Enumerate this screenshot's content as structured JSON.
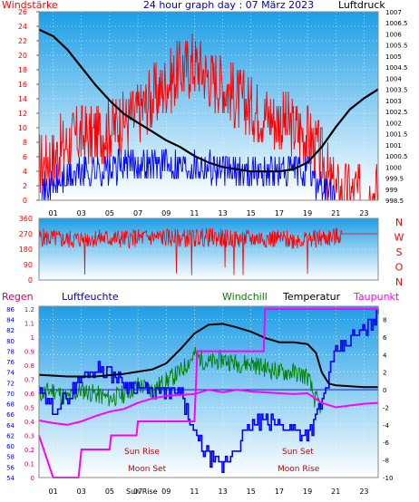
{
  "colors": {
    "wind": "#ff0000",
    "wind_avg": "#0000ff",
    "pressure": "#000000",
    "direction": "#ff0000",
    "dew": "#ff00ff",
    "humidity": "#0000ff",
    "windchill": "#008000",
    "temperature": "#000000",
    "rain": "#cc0066",
    "bg_top": "#1e9ee6",
    "bg_bottom": "#ffffff"
  },
  "chart_data": [
    {
      "type": "line",
      "title": "24 hour graph day : 07 März 2023",
      "left_label": "Windstärke",
      "right_label": "Luftdruck",
      "x_tick_labels": [
        "01",
        "03",
        "05",
        "07",
        "09",
        "11",
        "13",
        "15",
        "17",
        "19",
        "21",
        "23"
      ],
      "y_left_ticks": [
        "0",
        "2",
        "4",
        "6",
        "8",
        "10",
        "12",
        "14",
        "16",
        "18",
        "20",
        "22",
        "24",
        "26"
      ],
      "y_right_ticks": [
        "998.5",
        "999",
        "999.5",
        "1000",
        "1000.5",
        "1001",
        "1001.5",
        "1002",
        "1002.5",
        "1003",
        "1003.5",
        "1004",
        "1004.5",
        "1005",
        "1005.5",
        "1006",
        "1006.5",
        "1007"
      ],
      "ylim_left": [
        0,
        26
      ],
      "ylim_right": [
        998.5,
        1007
      ],
      "xlim": [
        0,
        24
      ],
      "series": [
        {
          "name": "Windstärke",
          "axis": "left",
          "x": [
            0,
            1,
            2,
            3,
            4,
            5,
            6,
            7,
            8,
            9,
            10,
            11,
            12,
            13,
            14,
            15,
            16,
            17,
            18,
            19,
            20,
            20.5,
            21,
            22,
            23,
            24
          ],
          "values": [
            5,
            6,
            8,
            9,
            9,
            10,
            11,
            12,
            14,
            16,
            18,
            19,
            17,
            16,
            14,
            13,
            12,
            11,
            10,
            9,
            6,
            3,
            1,
            1,
            1,
            1
          ]
        },
        {
          "name": "Windstärke avg",
          "axis": "left",
          "x": [
            0,
            1,
            2,
            3,
            4,
            5,
            6,
            7,
            8,
            9,
            10,
            11,
            12,
            13,
            14,
            15,
            16,
            17,
            18,
            19,
            20,
            21,
            22,
            23,
            24
          ],
          "values": [
            1,
            2,
            3,
            4,
            4,
            4,
            5,
            5,
            5,
            5,
            5,
            5,
            5,
            4,
            4,
            4,
            4,
            4,
            4,
            4,
            2,
            0,
            0,
            0,
            0
          ]
        },
        {
          "name": "Luftdruck",
          "axis": "right",
          "x": [
            0,
            1,
            2,
            3,
            4,
            5,
            6,
            7,
            8,
            9,
            10,
            11,
            12,
            13,
            14,
            15,
            16,
            17,
            18,
            19,
            20,
            21,
            22,
            23,
            24
          ],
          "values": [
            1006.2,
            1005.9,
            1005.3,
            1004.5,
            1003.7,
            1003.0,
            1002.4,
            1002.0,
            1001.6,
            1001.2,
            1000.9,
            1000.5,
            1000.2,
            1000.0,
            999.9,
            999.8,
            999.8,
            999.8,
            999.9,
            1000.2,
            1000.9,
            1001.8,
            1002.6,
            1003.1,
            1003.5
          ]
        }
      ]
    },
    {
      "type": "line",
      "right_label": [
        "N",
        "W",
        "S",
        "O",
        "N"
      ],
      "y_left_ticks": [
        "0",
        "90",
        "180",
        "270",
        "360"
      ],
      "ylim": [
        0,
        360
      ],
      "xlim": [
        0,
        24
      ],
      "series": [
        {
          "name": "Windrichtung",
          "x": [
            0,
            2,
            4,
            6,
            8,
            10,
            12,
            14,
            16,
            18,
            20,
            21,
            21.5,
            24
          ],
          "values": [
            250,
            235,
            245,
            240,
            250,
            245,
            250,
            240,
            245,
            235,
            245,
            250,
            270,
            270
          ]
        }
      ]
    },
    {
      "type": "line",
      "labels": {
        "rain": "Regen",
        "humidity": "Luftfeuchte",
        "windchill": "Windchill",
        "temperature": "Temperatur",
        "dew": "Taupunkt"
      },
      "x_tick_labels": [
        "01",
        "03",
        "05",
        "07",
        "09",
        "11",
        "13",
        "15",
        "17",
        "19",
        "21",
        "23"
      ],
      "humidity_ticks": [
        "54",
        "56",
        "58",
        "60",
        "62",
        "64",
        "66",
        "68",
        "70",
        "72",
        "74",
        "76",
        "78",
        "80",
        "82",
        "84",
        "86"
      ],
      "rain_ticks": [
        "0",
        "0.1",
        "0.2",
        "0.3",
        "0.4",
        "0.5",
        "0.6",
        "0.7",
        "0.8",
        "0.9",
        "1",
        "1.1",
        "1.2"
      ],
      "temp_ticks": [
        "-10",
        "-8",
        "-6",
        "-4",
        "-2",
        "0",
        "2",
        "4",
        "6",
        "8"
      ],
      "annotations": [
        "Sun Rise",
        "Moon Set",
        "Sun Set",
        "Moon Rise",
        "Sun Rise"
      ],
      "xlim": [
        0,
        24
      ],
      "series": [
        {
          "name": "Temperatur",
          "axis": "temp",
          "x": [
            0,
            2,
            4,
            6,
            8,
            9,
            10,
            11,
            12,
            13,
            14,
            15,
            16,
            17,
            18,
            19,
            19.6,
            20,
            20.5,
            21,
            22,
            23,
            24
          ],
          "values": [
            1.7,
            1.5,
            1.5,
            1.8,
            2.3,
            3.0,
            4.6,
            6.4,
            7.4,
            7.5,
            7.1,
            6.6,
            5.9,
            5.4,
            5.4,
            5.2,
            4.2,
            2.0,
            0.7,
            0.5,
            0.4,
            0.3,
            0.3
          ]
        },
        {
          "name": "Windchill",
          "axis": "temp",
          "x": [
            0,
            1,
            2,
            3,
            4,
            5,
            6,
            7,
            8,
            9,
            10,
            11,
            12,
            13,
            14,
            15,
            16,
            17,
            18,
            19,
            19.5,
            20,
            21,
            22,
            23,
            24
          ],
          "values": [
            -0.5,
            0,
            -1,
            0,
            -0.5,
            -1,
            -0.5,
            0.5,
            0,
            1,
            2,
            4,
            3,
            3.5,
            3,
            3,
            2.5,
            2,
            2,
            1.5,
            -1,
            -2,
            null,
            null,
            null,
            null
          ]
        },
        {
          "name": "Taupunkt",
          "axis": "temp",
          "x": [
            0,
            1,
            2,
            3,
            4,
            5,
            6,
            7,
            8,
            9,
            10,
            11,
            12,
            13,
            14,
            15,
            16,
            17,
            18,
            19,
            20,
            21,
            22,
            23,
            24
          ],
          "values": [
            -3.5,
            -3.8,
            -4,
            -3.6,
            -3,
            -2.5,
            -2.2,
            -1.5,
            -1,
            -0.7,
            -0.6,
            -0.5,
            0,
            -0.3,
            0,
            -0.2,
            -0.3,
            -0.4,
            -0.5,
            -0.4,
            -1.5,
            -2,
            -1.8,
            -1.6,
            -1.5
          ]
        },
        {
          "name": "Luftfeuchte",
          "axis": "humidity",
          "x": [
            0,
            1,
            2,
            3,
            4,
            5,
            6,
            7,
            8,
            9,
            10,
            11,
            12,
            13,
            14,
            15,
            16,
            17,
            18,
            19,
            20,
            21,
            22,
            23,
            24
          ],
          "values": [
            70,
            67,
            69,
            73,
            75,
            74,
            72,
            71,
            70,
            70,
            70,
            62,
            58,
            56,
            60,
            64,
            65,
            64,
            63,
            62,
            68,
            78,
            80,
            82,
            85
          ]
        },
        {
          "name": "Regen",
          "axis": "rain",
          "x": [
            0,
            1,
            1.8,
            2.8,
            3,
            5,
            5.1,
            6.9,
            7,
            11,
            11.2,
            15.9,
            16,
            20,
            24
          ],
          "values": [
            0.3,
            0,
            0,
            0,
            0.2,
            0.2,
            0.3,
            0.3,
            0.4,
            0.4,
            0.9,
            0.9,
            1.2,
            1.2,
            1.2
          ]
        }
      ]
    }
  ]
}
